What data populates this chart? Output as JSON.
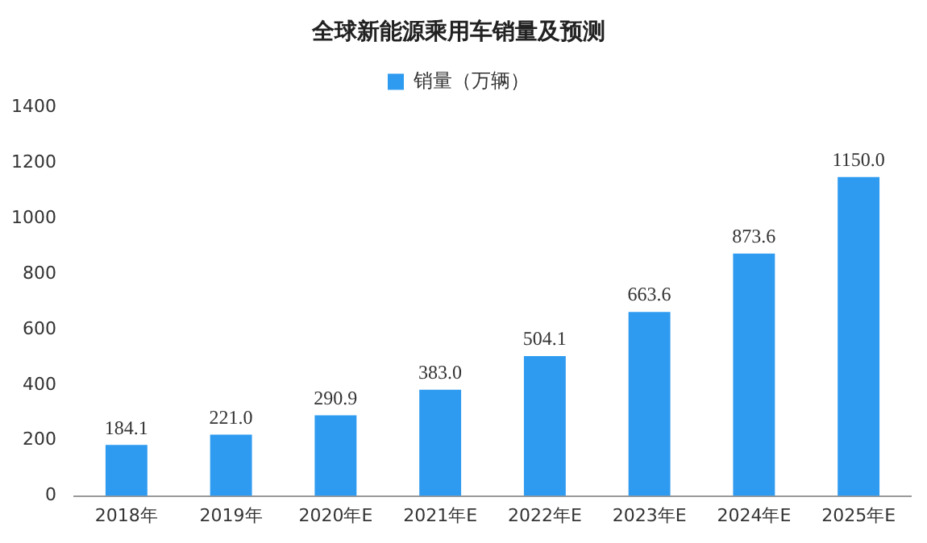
{
  "chart_data": {
    "type": "bar",
    "title": "全球新能源乘用车销量及预测",
    "categories": [
      "2018年",
      "2019年",
      "2020年E",
      "2021年E",
      "2022年E",
      "2023年E",
      "2024年E",
      "2025年E"
    ],
    "series": [
      {
        "name": "销量（万辆）",
        "color": "#2f9bf0",
        "values": [
          184.1,
          221.0,
          290.9,
          383.0,
          504.1,
          663.6,
          873.6,
          1150.0
        ]
      }
    ],
    "value_labels": [
      "184.1",
      "221.0",
      "290.9",
      "383.0",
      "504.1",
      "663.6",
      "873.6",
      "1150.0"
    ],
    "ylim": [
      0,
      1400
    ],
    "yticks": [
      0,
      200,
      400,
      600,
      800,
      1000,
      1200,
      1400
    ],
    "grid": false,
    "legend": "top"
  }
}
